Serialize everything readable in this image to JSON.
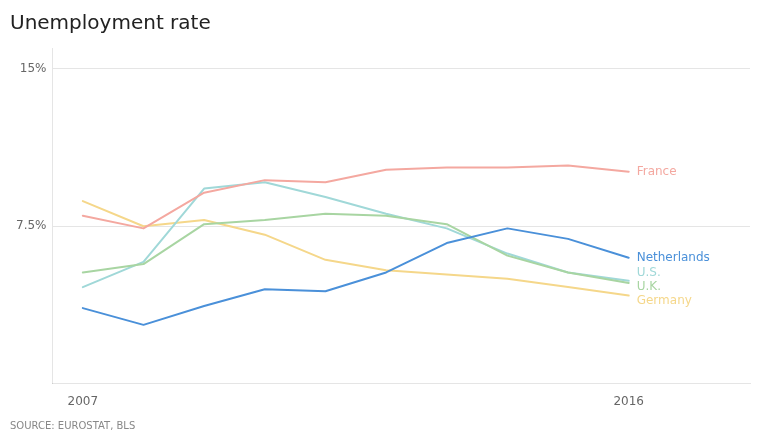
{
  "chart_data": {
    "type": "line",
    "title": "Unemployment rate",
    "annotation": "SOURCE: EUROSTAT, BLS",
    "x": [
      2007,
      2008,
      2009,
      2010,
      2011,
      2012,
      2013,
      2014,
      2015,
      2016
    ],
    "series": [
      {
        "name": "France",
        "color": "#f4a8a0",
        "values": [
          8.0,
          7.4,
          9.1,
          9.7,
          9.6,
          10.2,
          10.3,
          10.3,
          10.4,
          10.1
        ]
      },
      {
        "name": "Netherlands",
        "color": "#4a90d9",
        "values": [
          3.6,
          2.8,
          3.7,
          4.5,
          4.4,
          5.3,
          6.7,
          7.4,
          6.9,
          6.0
        ]
      },
      {
        "name": "U.K.",
        "color": "#a8d5a2",
        "values": [
          5.3,
          5.7,
          7.6,
          7.8,
          8.1,
          8.0,
          7.6,
          6.1,
          5.3,
          4.8
        ]
      },
      {
        "name": "U.S.",
        "color": "#a0d8d8",
        "values": [
          4.6,
          5.8,
          9.3,
          9.6,
          8.9,
          8.1,
          7.4,
          6.2,
          5.3,
          4.9
        ]
      },
      {
        "name": "Germany",
        "color": "#f5d78a",
        "values": [
          8.7,
          7.5,
          7.8,
          7.1,
          5.9,
          5.4,
          5.2,
          5.0,
          4.6,
          4.2
        ]
      }
    ],
    "xlim": [
      2006.5,
      2018.0
    ],
    "xticks": [
      2007,
      2016
    ],
    "ylim": [
      0,
      16
    ],
    "yticks": [
      {
        "value": 7.5,
        "label": "7.5%"
      },
      {
        "value": 15,
        "label": "15%"
      }
    ],
    "grid": true
  }
}
